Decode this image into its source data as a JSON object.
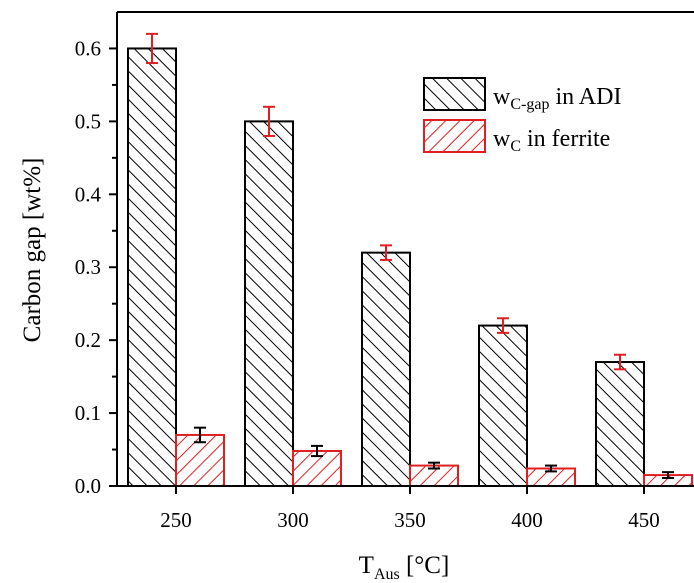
{
  "chart_data": {
    "type": "bar",
    "categories": [
      "250",
      "300",
      "350",
      "400",
      "450"
    ],
    "series": [
      {
        "name_main": "w",
        "name_sub": "C-gap",
        "name_rest": " in ADI",
        "color": "#000000",
        "values": [
          0.6,
          0.5,
          0.32,
          0.22,
          0.17
        ],
        "errors": [
          0.02,
          0.02,
          0.01,
          0.01,
          0.01
        ],
        "error_color": "#e02020"
      },
      {
        "name_main": "w",
        "name_sub": "C",
        "name_rest": " in ferrite",
        "color": "#e02020",
        "values": [
          0.07,
          0.048,
          0.028,
          0.024,
          0.015
        ],
        "errors": [
          0.01,
          0.007,
          0.004,
          0.004,
          0.004
        ],
        "error_color": "#000000"
      }
    ],
    "xlabel_main": "T",
    "xlabel_sub": "Aus",
    "xlabel_rest": " [°C]",
    "ylabel": "Carbon gap [wt%]",
    "ylim": [
      0.0,
      0.65
    ],
    "yticks": [
      "0.0",
      "0.1",
      "0.2",
      "0.3",
      "0.4",
      "0.5",
      "0.6"
    ],
    "legend_position": "top-right"
  }
}
